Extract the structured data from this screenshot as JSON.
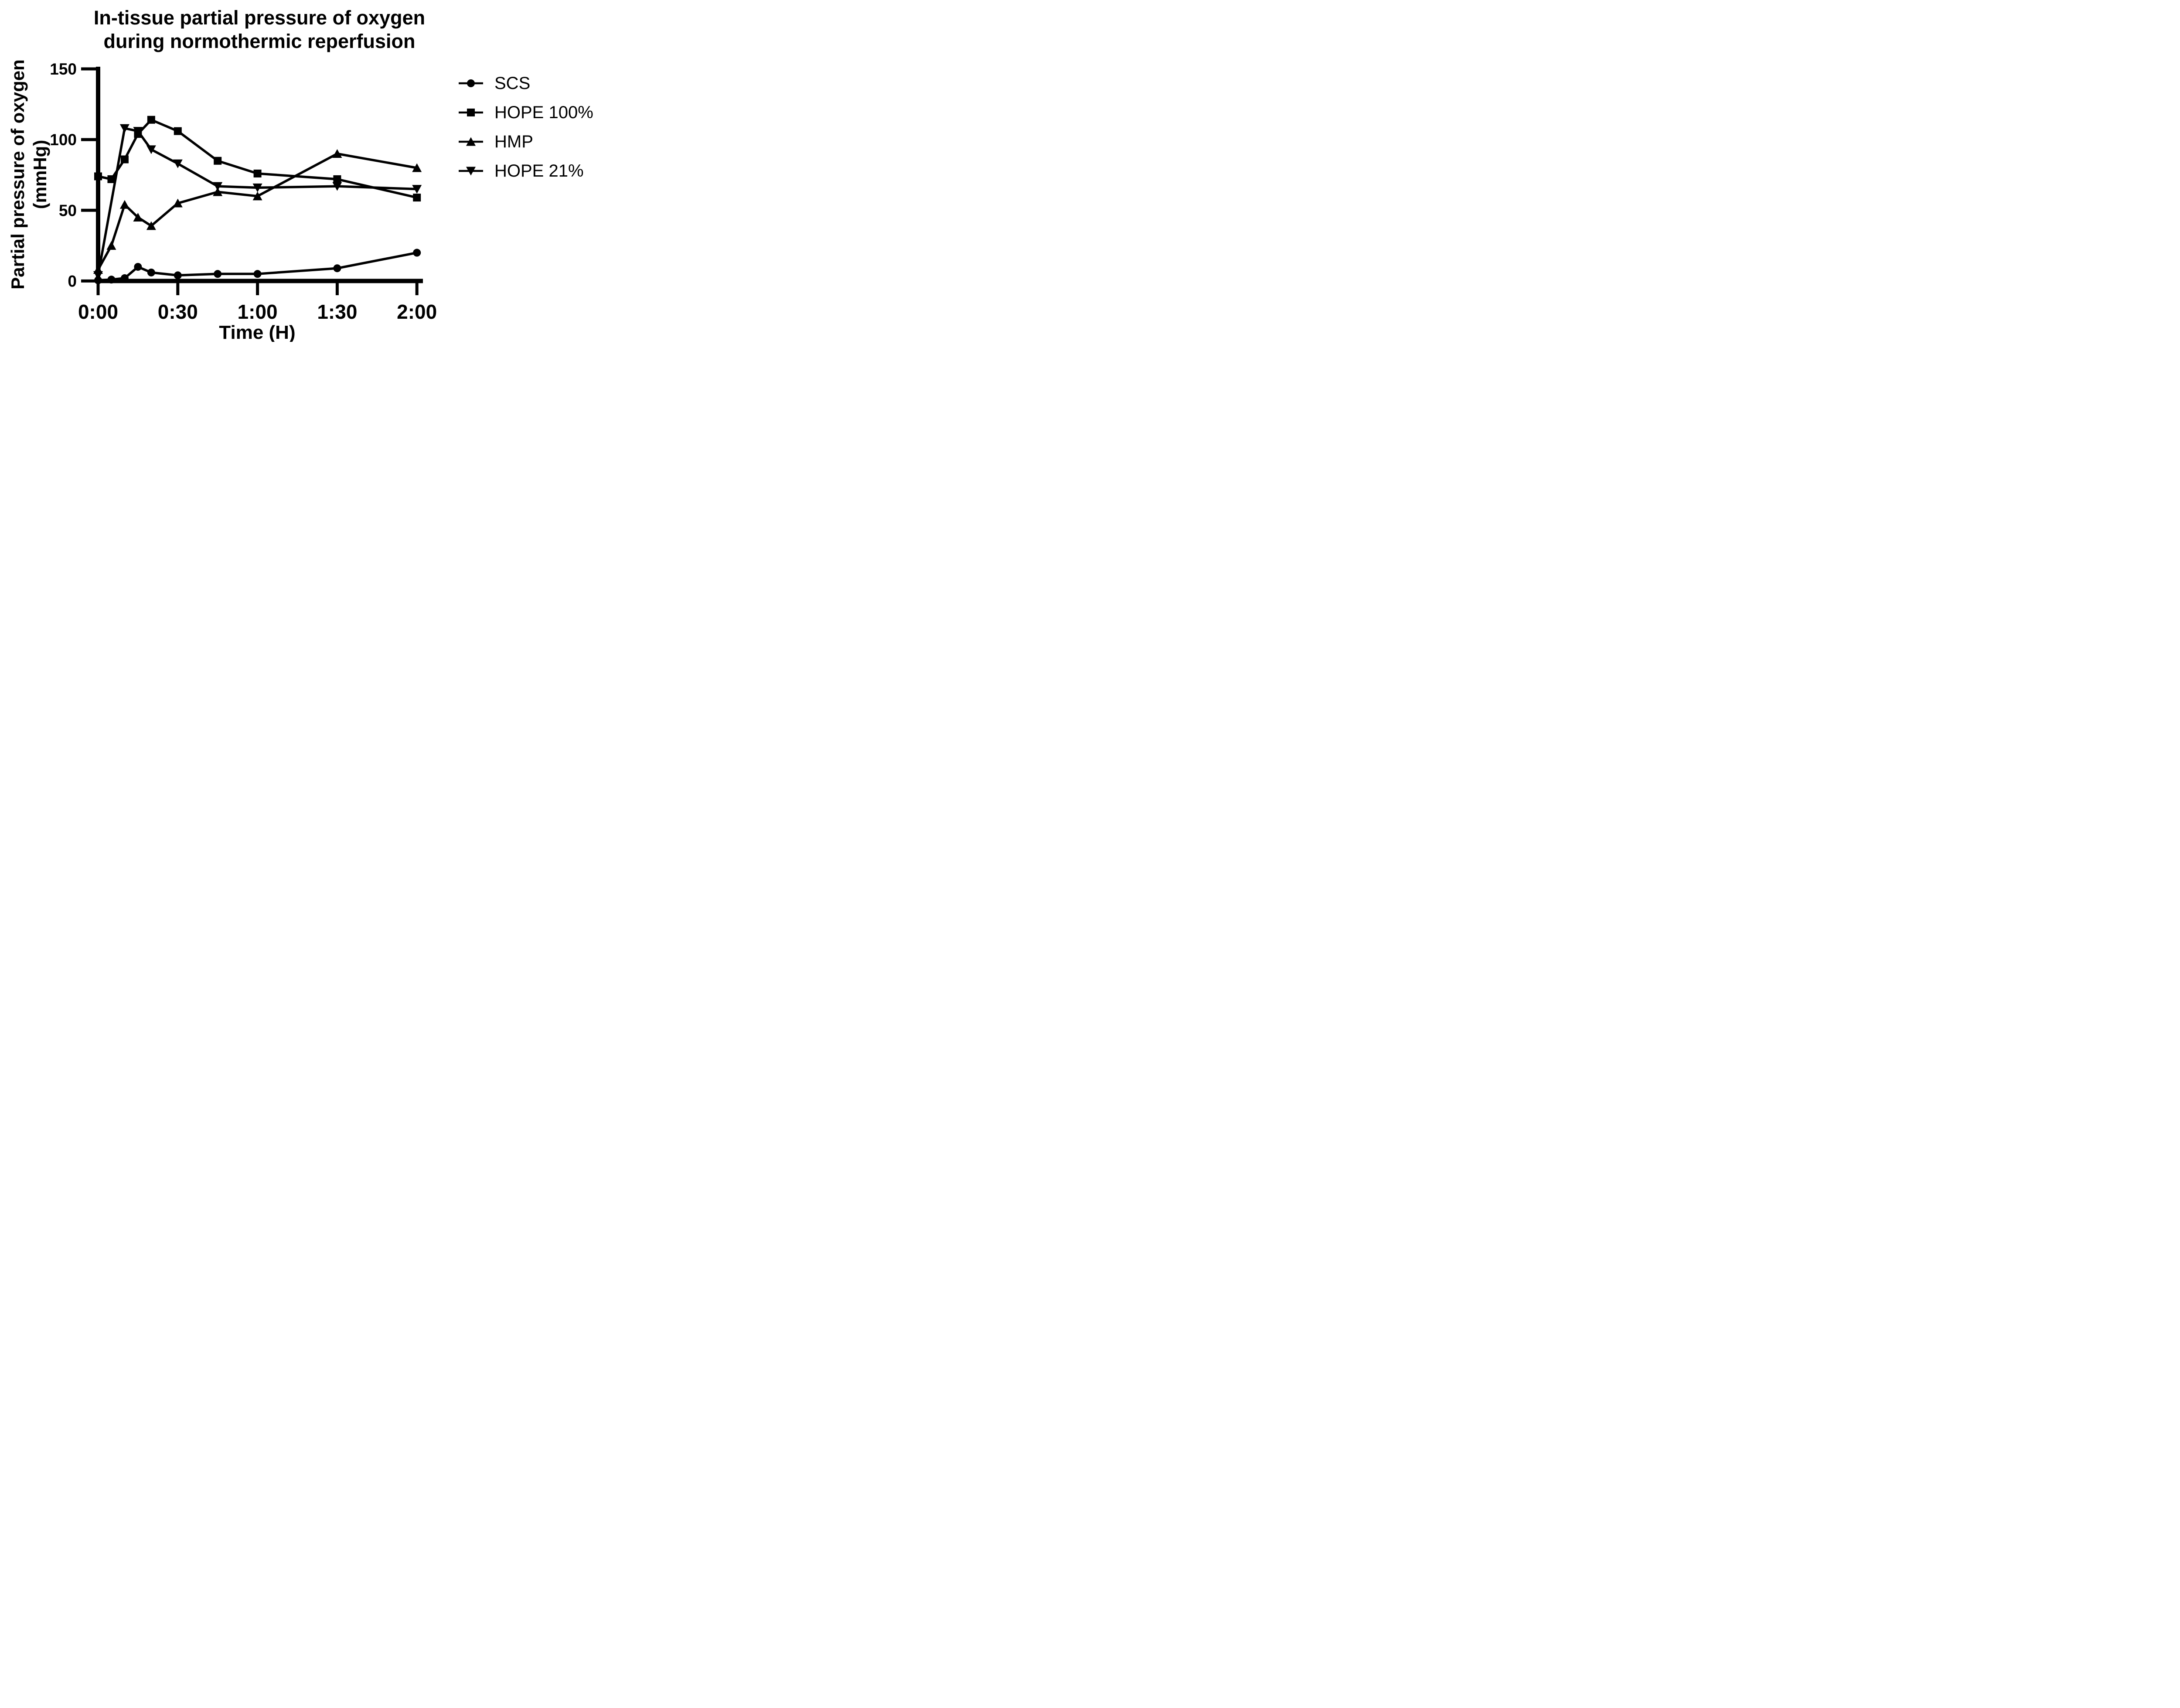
{
  "chart_data": {
    "type": "line",
    "title": "In-tissue partial pressure of oxygen during normothermic reperfusion",
    "title_lines": [
      "In-tissue partial pressure of oxygen",
      "during normothermic reperfusion"
    ],
    "xlabel": "Time (H)",
    "ylabel": "Partial pressure of oxygen (mmHg)",
    "ylabel_lines": [
      "Partial pressure  of oxygen",
      "(mmHg)"
    ],
    "x_unit_minutes": true,
    "xlim": [
      0,
      120
    ],
    "ylim": [
      0,
      150
    ],
    "x_ticks": [
      {
        "t": 0,
        "label": "0:00"
      },
      {
        "t": 30,
        "label": "0:30"
      },
      {
        "t": 60,
        "label": "1:00"
      },
      {
        "t": 90,
        "label": "1:30"
      },
      {
        "t": 120,
        "label": "2:00"
      }
    ],
    "y_ticks": [
      0,
      50,
      100,
      150
    ],
    "grid": false,
    "legend_position": "right",
    "color": "#000000",
    "background": "#ffffff",
    "series": [
      {
        "name": "SCS",
        "marker": "circle",
        "points": [
          [
            0,
            0.5
          ],
          [
            5,
            1
          ],
          [
            10,
            2
          ],
          [
            15,
            10
          ],
          [
            20,
            6
          ],
          [
            30,
            4
          ],
          [
            45,
            5
          ],
          [
            60,
            5
          ],
          [
            90,
            9
          ],
          [
            120,
            20
          ]
        ]
      },
      {
        "name": "HOPE 100%",
        "marker": "square",
        "points": [
          [
            0,
            74
          ],
          [
            5,
            72
          ],
          [
            10,
            86
          ],
          [
            15,
            104
          ],
          [
            20,
            114
          ],
          [
            30,
            106
          ],
          [
            45,
            85
          ],
          [
            60,
            76
          ],
          [
            90,
            72
          ],
          [
            120,
            59
          ]
        ]
      },
      {
        "name": "HMP",
        "marker": "triangle-up",
        "points": [
          [
            0,
            8
          ],
          [
            5,
            25
          ],
          [
            10,
            54
          ],
          [
            15,
            45
          ],
          [
            20,
            39
          ],
          [
            30,
            55
          ],
          [
            45,
            63
          ],
          [
            60,
            60
          ],
          [
            90,
            90
          ],
          [
            120,
            80
          ]
        ]
      },
      {
        "name": "HOPE 21%",
        "marker": "triangle-down",
        "points": [
          [
            0,
            4
          ],
          [
            10,
            108
          ],
          [
            15,
            106
          ],
          [
            20,
            93
          ],
          [
            30,
            83
          ],
          [
            45,
            67
          ],
          [
            60,
            66
          ],
          [
            90,
            67
          ],
          [
            120,
            65
          ]
        ]
      }
    ]
  }
}
